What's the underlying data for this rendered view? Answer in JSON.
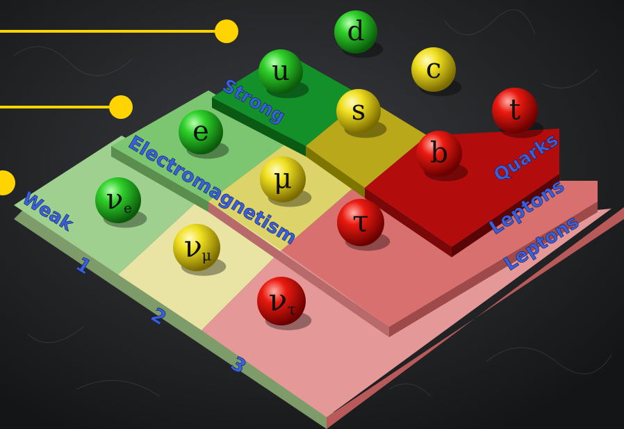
{
  "colors": {
    "background": "#1b1d1f",
    "callout_line": "#ffd400",
    "green_ball": "#1fb41f",
    "yellow_ball": "#e3d51a",
    "red_ball": "#e01010",
    "label_blue": "#3a5fd9"
  },
  "force_labels": {
    "strong": "Strong",
    "electromagnetism": "Electromagnetism",
    "weak": "Weak",
    "quarks": "Quarks",
    "leptons_upper": "Leptons",
    "leptons_lower": "Leptons"
  },
  "generations": [
    "1",
    "2",
    "3"
  ],
  "particles": [
    {
      "id": "d",
      "symbol": "d",
      "sub": "",
      "color": "green"
    },
    {
      "id": "u",
      "symbol": "u",
      "sub": "",
      "color": "green"
    },
    {
      "id": "c",
      "symbol": "c",
      "sub": "",
      "color": "yellow"
    },
    {
      "id": "s",
      "symbol": "s",
      "sub": "",
      "color": "yellow"
    },
    {
      "id": "t",
      "symbol": "t",
      "sub": "",
      "color": "red"
    },
    {
      "id": "b",
      "symbol": "b",
      "sub": "",
      "color": "red"
    },
    {
      "id": "e",
      "symbol": "e",
      "sub": "",
      "color": "green"
    },
    {
      "id": "mu",
      "symbol": "μ",
      "sub": "",
      "color": "yellow"
    },
    {
      "id": "tau",
      "symbol": "τ",
      "sub": "",
      "color": "red"
    },
    {
      "id": "nu_e",
      "symbol": "ν",
      "sub": "e",
      "color": "green"
    },
    {
      "id": "nu_mu",
      "symbol": "ν",
      "sub": "μ",
      "color": "yellow"
    },
    {
      "id": "nu_tau",
      "symbol": "ν",
      "sub": "τ",
      "color": "red"
    }
  ]
}
